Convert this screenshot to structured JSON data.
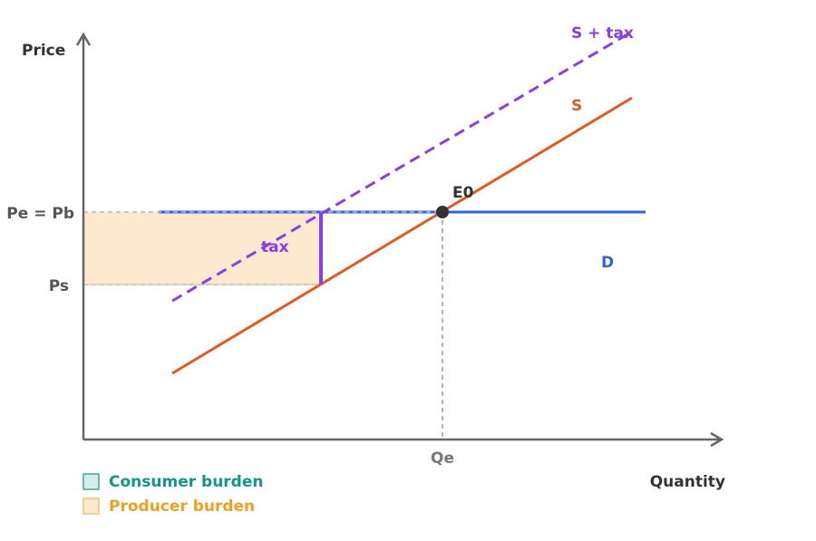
{
  "axes": {
    "y_label": "Price",
    "x_label": "Quantity"
  },
  "levels": {
    "pe_pb": "Pe = Pb",
    "ps": "Ps",
    "qe": "Qe"
  },
  "curves": {
    "supply_tax": "S + tax",
    "supply": "S",
    "demand": "D",
    "equilibrium": "E0",
    "tax": "tax"
  },
  "legend": {
    "consumer": "Consumer burden",
    "producer": "Producer burden"
  }
}
